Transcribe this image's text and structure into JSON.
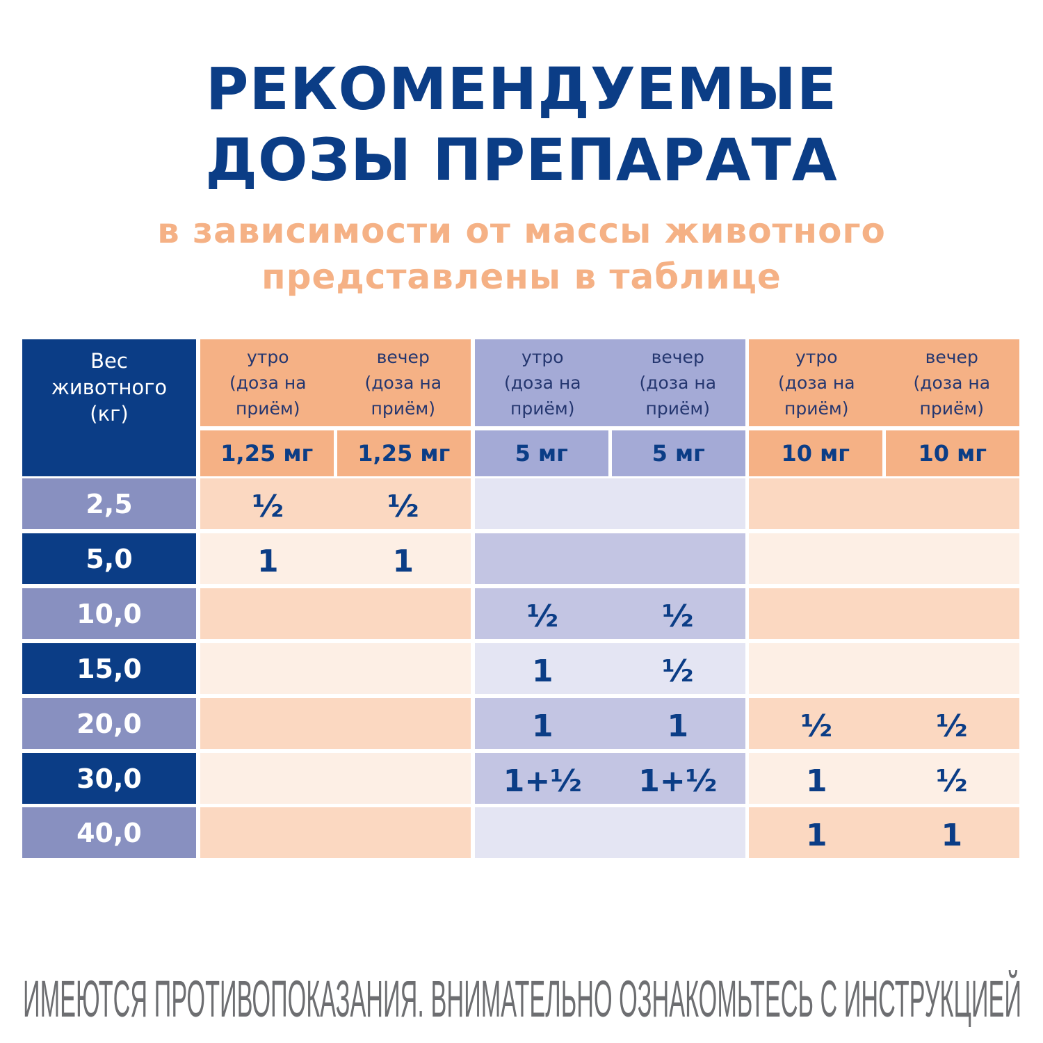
{
  "title": [
    "РЕКОМЕНДУЕМЫЕ",
    "ДОЗЫ ПРЕПАРАТА"
  ],
  "subtitle": [
    "в зависимости от массы животного",
    "представлены в таблице"
  ],
  "table": {
    "weight_header": [
      "Вес",
      "животного",
      "(кг)"
    ],
    "groups": [
      {
        "columns": [
          {
            "label": [
              "утро",
              "(доза на",
              "приём)"
            ],
            "dose": "1,25 мг"
          },
          {
            "label": [
              "вечер",
              "(доза на",
              "приём)"
            ],
            "dose": "1,25 мг"
          }
        ]
      },
      {
        "columns": [
          {
            "label": [
              "утро",
              "(доза на",
              "приём)"
            ],
            "dose": "5 мг"
          },
          {
            "label": [
              "вечер",
              "(доза на",
              "приём)"
            ],
            "dose": "5 мг"
          }
        ]
      },
      {
        "columns": [
          {
            "label": [
              "утро",
              "(доза на",
              "приём)"
            ],
            "dose": "10 мг"
          },
          {
            "label": [
              "вечер",
              "(доза на",
              "приём)"
            ],
            "dose": "10 мг"
          }
        ]
      }
    ],
    "rows": [
      {
        "weight": "2,5",
        "doses": [
          "½",
          "½",
          null,
          null,
          null,
          null
        ]
      },
      {
        "weight": "5,0",
        "doses": [
          "1",
          "1",
          null,
          null,
          null,
          null
        ]
      },
      {
        "weight": "10,0",
        "doses": [
          null,
          null,
          "½",
          "½",
          null,
          null
        ]
      },
      {
        "weight": "15,0",
        "doses": [
          null,
          null,
          "1",
          "½",
          null,
          null
        ]
      },
      {
        "weight": "20,0",
        "doses": [
          null,
          null,
          "1",
          "1",
          "½",
          "½"
        ]
      },
      {
        "weight": "30,0",
        "doses": [
          null,
          null,
          "1+½",
          "1+½",
          "1",
          "½"
        ]
      },
      {
        "weight": "40,0",
        "doses": [
          null,
          null,
          null,
          null,
          "1",
          "1"
        ]
      }
    ]
  },
  "footer": "ИМЕЮТСЯ ПРОТИВОПОКАЗАНИЯ.  ВНИМАТЕЛЬНО ОЗНАКОМЬТЕСЬ С ИНСТРУКЦИЕЙ"
}
